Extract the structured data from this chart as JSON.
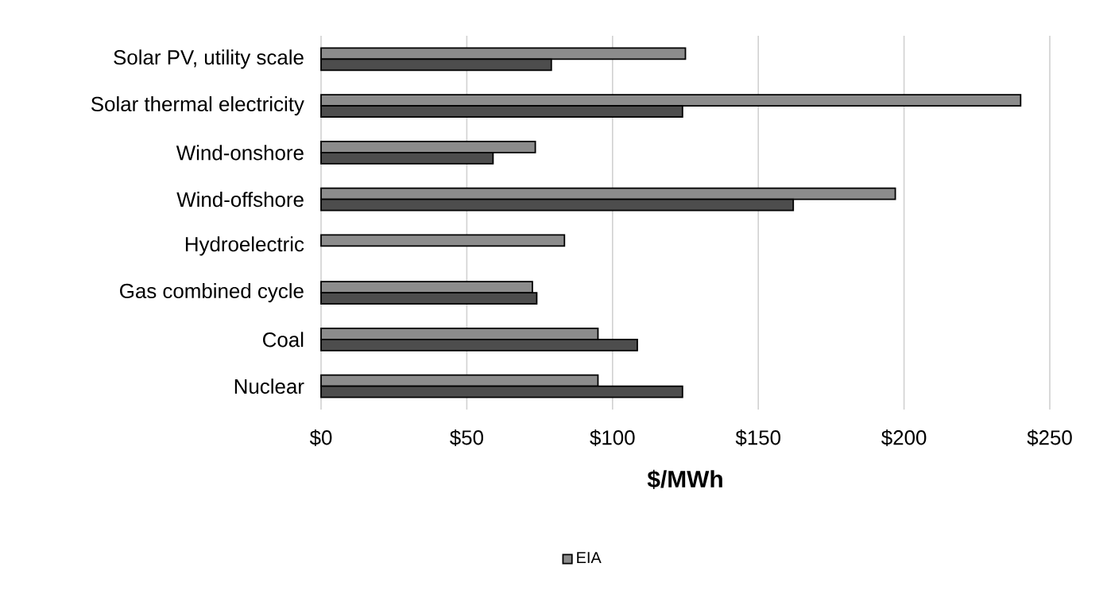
{
  "chart_data": {
    "type": "bar",
    "orientation": "horizontal",
    "xlabel": "$/MWh",
    "categories": [
      "Solar PV, utility scale",
      "Solar thermal electricity",
      "Wind-onshore",
      "Wind-offshore",
      "Hydroelectric",
      "Gas combined cycle",
      "Coal",
      "Nuclear"
    ],
    "series": [
      {
        "name": "EIA",
        "color": "#8c8c8c",
        "values": [
          125,
          240,
          73.5,
          197,
          83.5,
          72.5,
          95,
          95
        ]
      },
      {
        "color": "#4d4d4d",
        "values": [
          79,
          124,
          59,
          162,
          null,
          74,
          108.5,
          124
        ]
      }
    ],
    "xlim": [
      0,
      250
    ],
    "xticks": [
      {
        "value": 0,
        "label": "$0"
      },
      {
        "value": 50,
        "label": "$50"
      },
      {
        "value": 100,
        "label": "$100"
      },
      {
        "value": 150,
        "label": "$150"
      },
      {
        "value": 200,
        "label": "$200"
      },
      {
        "value": 250,
        "label": "$250"
      }
    ],
    "grid": "x",
    "legend": "bottom"
  }
}
